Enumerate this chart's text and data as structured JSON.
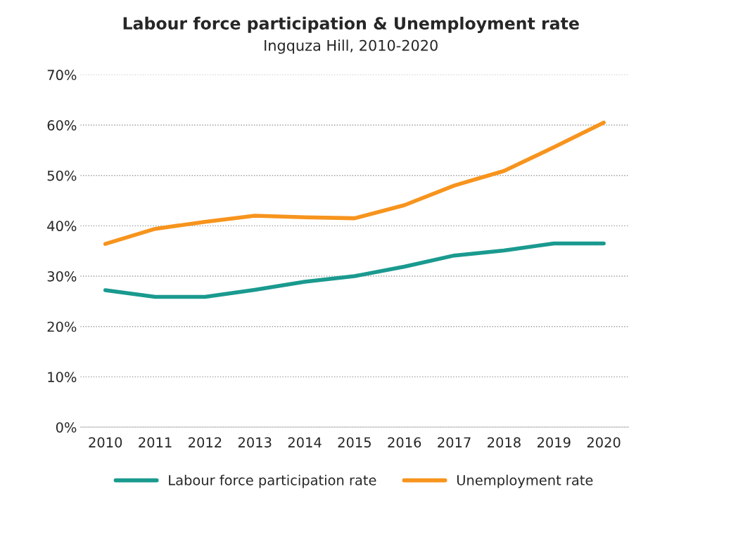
{
  "chart_data": {
    "type": "line",
    "title": "Labour force participation & Unemployment rate",
    "subtitle": "Ingquza Hill, 2010-2020",
    "categories": [
      "2010",
      "2011",
      "2012",
      "2013",
      "2014",
      "2015",
      "2016",
      "2017",
      "2018",
      "2019",
      "2020"
    ],
    "series": [
      {
        "name": "Labour force participation rate",
        "color": "#1a9a8f",
        "values": [
          27.2,
          25.9,
          25.9,
          27.3,
          28.9,
          30.0,
          31.9,
          34.1,
          35.1,
          36.5,
          36.5
        ]
      },
      {
        "name": "Unemployment rate",
        "color": "#f7941d",
        "values": [
          36.4,
          39.4,
          40.8,
          42.0,
          41.7,
          41.5,
          44.1,
          48.0,
          50.9,
          55.6,
          60.5
        ]
      }
    ],
    "ylim": [
      0,
      70
    ],
    "yticks": [
      {
        "value": 0,
        "label": "0%"
      },
      {
        "value": 10,
        "label": "10%"
      },
      {
        "value": 20,
        "label": "20%"
      },
      {
        "value": 30,
        "label": "30%"
      },
      {
        "value": 40,
        "label": "40%"
      },
      {
        "value": 50,
        "label": "50%"
      },
      {
        "value": 60,
        "label": "60%"
      },
      {
        "value": 70,
        "label": "70%"
      }
    ],
    "grid": "y",
    "legend": "bottom",
    "line_style": "solid",
    "marker": "none"
  }
}
